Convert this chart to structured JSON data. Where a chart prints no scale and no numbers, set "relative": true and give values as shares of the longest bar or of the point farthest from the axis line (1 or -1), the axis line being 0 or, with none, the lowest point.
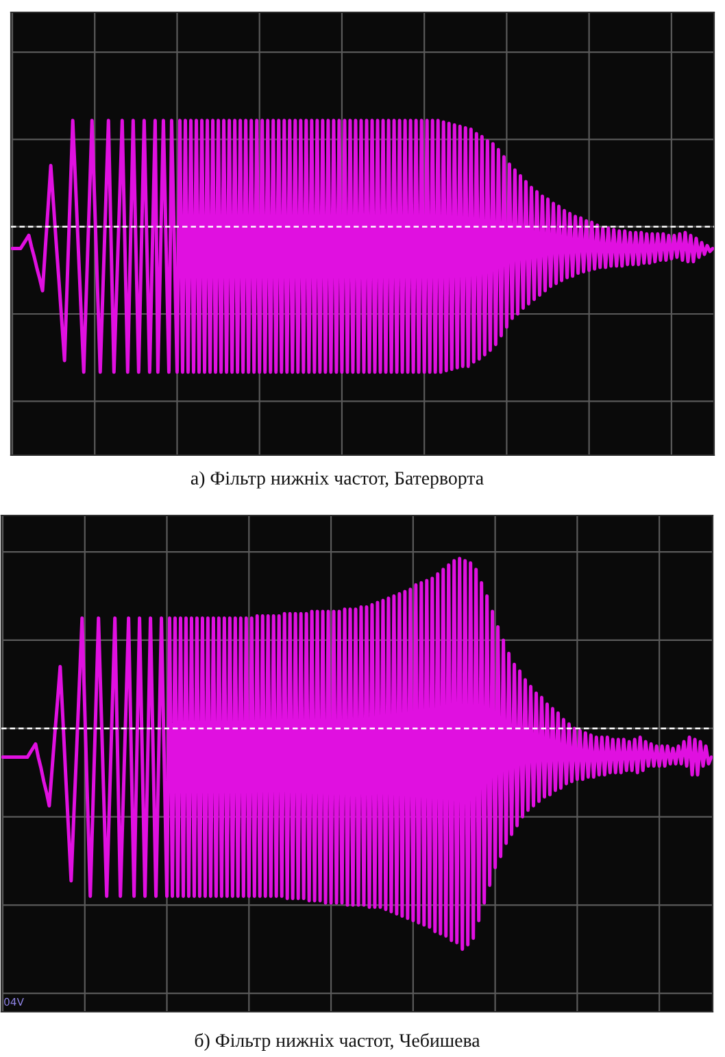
{
  "chart_data": [
    {
      "type": "line",
      "title": "а) Фільтр нижніх частот, Батерворта",
      "relative": true,
      "grid": true,
      "tick_labels": false,
      "ref_lines": [
        {
          "axis": "y",
          "value": 0,
          "color": "#ffffff",
          "line_style": "dashed"
        }
      ],
      "categories": [
        null,
        null,
        null,
        null,
        null,
        null,
        null,
        null,
        null,
        null,
        null,
        null,
        null,
        null,
        null,
        null,
        null,
        null,
        null,
        null,
        null,
        null,
        null,
        null,
        null,
        null,
        null,
        null,
        null,
        null,
        null,
        null,
        null,
        null,
        null,
        null,
        null,
        null,
        null,
        null,
        null,
        null,
        null,
        null,
        null,
        null,
        null,
        null,
        null,
        null,
        null,
        null,
        null,
        null,
        null,
        null,
        null,
        null,
        null,
        null,
        null,
        null,
        null,
        null,
        null,
        null,
        null,
        null,
        null,
        null,
        null,
        null,
        null,
        null,
        null,
        null,
        null,
        null,
        null,
        null,
        null,
        null,
        null,
        null,
        null,
        null,
        null,
        null,
        null,
        null,
        null,
        null,
        null,
        null,
        null,
        null,
        null,
        null,
        null,
        null,
        null,
        null,
        null,
        null,
        null,
        null,
        null,
        null,
        null,
        null,
        null,
        null,
        null,
        null,
        null,
        null,
        null,
        null,
        null,
        null,
        null,
        null,
        null,
        null,
        null,
        null,
        null,
        null,
        null,
        null,
        null,
        null,
        null,
        null,
        null,
        null,
        null,
        null,
        null,
        null,
        null,
        null,
        null,
        null,
        null,
        null,
        null,
        null,
        null,
        null,
        null,
        null,
        null,
        null,
        null,
        null,
        null,
        null,
        null,
        null,
        null,
        null,
        null,
        null,
        null,
        null,
        null,
        null,
        null,
        null,
        null,
        null,
        null,
        null,
        null,
        null,
        null,
        null,
        null,
        null,
        null,
        null,
        null,
        null,
        null,
        null,
        null,
        null,
        null,
        null,
        null,
        null,
        null,
        null,
        null,
        null,
        null,
        null,
        null,
        null,
        null,
        null,
        null,
        null,
        null,
        null,
        null,
        null,
        null,
        null,
        null,
        null,
        null,
        null,
        null,
        null,
        null,
        null,
        null,
        null,
        null,
        null,
        null,
        null,
        null,
        null,
        null,
        null,
        null,
        null,
        null,
        null,
        null,
        null,
        null,
        null,
        null,
        null,
        null,
        null,
        null,
        null,
        null,
        null,
        null,
        null,
        null,
        null,
        null,
        null,
        null,
        null,
        null,
        null,
        null,
        null
      ],
      "series": [
        {
          "color": "#e010e0",
          "values": [
            -0.15,
            -0.15,
            -0.15,
            -0.15,
            -0.12,
            -0.09,
            -0.06,
            -0.14,
            -0.21,
            -0.29,
            -0.36,
            -0.44,
            -0.15,
            0.13,
            0.42,
            0.15,
            -0.12,
            -0.38,
            -0.65,
            -0.92,
            -0.37,
            0.18,
            0.73,
            0.3,
            -0.14,
            -0.57,
            -1,
            -0.42,
            0.15,
            0.73,
            0.15,
            -0.42,
            -1,
            -0.42,
            0.15,
            0.73,
            -0.14,
            -1,
            -0.42,
            0.15,
            0.73,
            -0.14,
            -1,
            -0.14,
            0.73,
            -0.14,
            -1,
            -0.14,
            0.73,
            -0.14,
            -1,
            -0.14,
            0.73,
            -1,
            -0.14,
            0.73,
            -0.14,
            -1,
            0.73,
            -0.14,
            -1,
            0.73,
            -1,
            0.73,
            -1,
            0.73,
            -1,
            0.73,
            -1,
            0.73,
            -1,
            0.73,
            -1,
            0.73,
            -1,
            0.73,
            -1,
            0.73,
            -1,
            0.73,
            -1,
            0.73,
            -1,
            0.73,
            -1,
            0.73,
            -1,
            0.73,
            -1,
            0.73,
            -1,
            0.73,
            -1,
            0.73,
            -1,
            0.73,
            -1,
            0.73,
            -1,
            0.73,
            -1,
            0.73,
            -1,
            0.73,
            -1,
            0.73,
            -1,
            0.73,
            -1,
            0.73,
            -1,
            0.73,
            -1,
            0.73,
            -1,
            0.73,
            -1,
            0.73,
            -1,
            0.73,
            -1,
            0.73,
            -1,
            0.73,
            -1,
            0.73,
            -1,
            0.73,
            -1,
            0.73,
            -1,
            0.73,
            -1,
            0.73,
            -1,
            0.73,
            -1,
            0.73,
            -1,
            0.73,
            -1,
            0.73,
            -1,
            0.73,
            -1,
            0.73,
            -1,
            0.73,
            -1,
            0.73,
            -1,
            0.73,
            -1,
            0.73,
            -1,
            0.73,
            -1,
            0.72,
            -0.99,
            0.71,
            -0.98,
            0.7,
            -0.97,
            0.69,
            -0.96,
            0.68,
            -0.96,
            0.67,
            -0.93,
            0.64,
            -0.91,
            0.62,
            -0.88,
            0.59,
            -0.85,
            0.57,
            -0.81,
            0.53,
            -0.75,
            0.48,
            -0.69,
            0.43,
            -0.63,
            0.39,
            -0.6,
            0.35,
            -0.56,
            0.31,
            -0.53,
            0.27,
            -0.5,
            0.24,
            -0.47,
            0.21,
            -0.44,
            0.19,
            -0.41,
            0.16,
            -0.39,
            0.14,
            -0.37,
            0.11,
            -0.35,
            0.09,
            -0.34,
            0.07,
            -0.32,
            0.06,
            -0.31,
            0.04,
            -0.3,
            0.03,
            -0.29,
            0.01,
            -0.28,
            -0.01,
            -0.28,
            -0.01,
            -0.27,
            -0.02,
            -0.27,
            -0.03,
            -0.27,
            -0.03,
            -0.26,
            -0.04,
            -0.26,
            -0.04,
            -0.26,
            -0.04,
            -0.25,
            -0.05,
            -0.25,
            -0.05,
            -0.24,
            -0.05,
            -0.23,
            -0.05,
            -0.23,
            -0.06,
            -0.22,
            -0.06,
            -0.21,
            -0.05,
            -0.23,
            -0.04,
            -0.24,
            -0.06,
            -0.24,
            -0.08,
            -0.21,
            -0.11,
            -0.19,
            -0.13,
            -0.17,
            -0.15
          ]
        }
      ]
    },
    {
      "type": "line",
      "title": "б) Фільтр нижніх частот, Чебишева",
      "relative": true,
      "grid": true,
      "tick_labels": false,
      "ref_lines": [
        {
          "axis": "y",
          "value": 0,
          "color": "#ffffff",
          "line_style": "dashed"
        }
      ],
      "annotations": [
        "04V"
      ],
      "categories": [
        null,
        null,
        null,
        null,
        null,
        null,
        null,
        null,
        null,
        null,
        null,
        null,
        null,
        null,
        null,
        null,
        null,
        null,
        null,
        null,
        null,
        null,
        null,
        null,
        null,
        null,
        null,
        null,
        null,
        null,
        null,
        null,
        null,
        null,
        null,
        null,
        null,
        null,
        null,
        null,
        null,
        null,
        null,
        null,
        null,
        null,
        null,
        null,
        null,
        null,
        null,
        null,
        null,
        null,
        null,
        null,
        null,
        null,
        null,
        null,
        null,
        null,
        null,
        null,
        null,
        null,
        null,
        null,
        null,
        null,
        null,
        null,
        null,
        null,
        null,
        null,
        null,
        null,
        null,
        null,
        null,
        null,
        null,
        null,
        null,
        null,
        null,
        null,
        null,
        null,
        null,
        null,
        null,
        null,
        null,
        null,
        null,
        null,
        null,
        null,
        null,
        null,
        null,
        null,
        null,
        null,
        null,
        null,
        null,
        null,
        null,
        null,
        null,
        null,
        null,
        null,
        null,
        null,
        null,
        null,
        null,
        null,
        null,
        null,
        null,
        null,
        null,
        null,
        null,
        null,
        null,
        null,
        null,
        null,
        null,
        null,
        null,
        null,
        null,
        null,
        null,
        null,
        null,
        null,
        null,
        null,
        null,
        null,
        null,
        null,
        null,
        null,
        null,
        null,
        null,
        null,
        null,
        null,
        null,
        null,
        null,
        null,
        null,
        null,
        null,
        null,
        null,
        null,
        null,
        null,
        null,
        null,
        null,
        null,
        null,
        null,
        null,
        null,
        null,
        null,
        null,
        null,
        null,
        null,
        null,
        null,
        null,
        null,
        null,
        null,
        null,
        null,
        null,
        null,
        null,
        null,
        null,
        null,
        null,
        null,
        null,
        null,
        null,
        null,
        null,
        null,
        null,
        null,
        null,
        null,
        null,
        null,
        null,
        null,
        null,
        null,
        null,
        null,
        null,
        null,
        null,
        null,
        null,
        null,
        null,
        null,
        null,
        null,
        null,
        null,
        null,
        null,
        null,
        null,
        null,
        null,
        null,
        null,
        null,
        null,
        null,
        null,
        null,
        null,
        null,
        null,
        null,
        null,
        null,
        null,
        null,
        null,
        null,
        null,
        null,
        null,
        null,
        null,
        null,
        null
      ],
      "series": [
        {
          "color": "#e010e0",
          "values": [
            -0.13,
            -0.13,
            -0.13,
            -0.13,
            -0.13,
            -0.13,
            -0.13,
            -0.13,
            -0.13,
            -0.13,
            -0.11,
            -0.09,
            -0.07,
            -0.13,
            -0.18,
            -0.24,
            -0.29,
            -0.35,
            -0.19,
            -0.03,
            0.12,
            0.28,
            0.04,
            -0.21,
            -0.45,
            -0.69,
            -0.39,
            -0.1,
            0.2,
            0.5,
            0.08,
            -0.34,
            -0.76,
            -0.34,
            0.08,
            0.5,
            0.08,
            -0.34,
            -0.76,
            -0.34,
            0.08,
            0.5,
            -0.13,
            -0.76,
            -0.34,
            0.08,
            0.5,
            -0.13,
            -0.76,
            -0.13,
            0.5,
            -0.13,
            -0.76,
            -0.13,
            0.5,
            -0.13,
            -0.76,
            -0.13,
            0.5,
            -0.13,
            -0.76,
            0.5,
            -0.76,
            0.5,
            -0.76,
            0.5,
            -0.76,
            0.5,
            -0.76,
            0.5,
            -0.76,
            0.5,
            -0.76,
            0.5,
            -0.76,
            0.5,
            -0.76,
            0.5,
            -0.76,
            0.5,
            -0.76,
            0.5,
            -0.76,
            0.5,
            -0.76,
            0.5,
            -0.76,
            0.5,
            -0.76,
            0.5,
            -0.76,
            0.5,
            -0.76,
            0.51,
            -0.76,
            0.51,
            -0.76,
            0.51,
            -0.76,
            0.51,
            -0.76,
            0.51,
            -0.76,
            0.52,
            -0.77,
            0.52,
            -0.77,
            0.52,
            -0.77,
            0.52,
            -0.77,
            0.52,
            -0.78,
            0.53,
            -0.78,
            0.53,
            -0.78,
            0.53,
            -0.79,
            0.53,
            -0.79,
            0.53,
            -0.79,
            0.53,
            -0.79,
            0.54,
            -0.8,
            0.54,
            -0.8,
            0.54,
            -0.8,
            0.55,
            -0.8,
            0.55,
            -0.81,
            0.56,
            -0.81,
            0.57,
            -0.81,
            0.58,
            -0.82,
            0.59,
            -0.83,
            0.6,
            -0.84,
            0.61,
            -0.85,
            0.62,
            -0.86,
            0.63,
            -0.87,
            0.65,
            -0.88,
            0.66,
            -0.89,
            0.67,
            -0.9,
            0.68,
            -0.92,
            0.7,
            -0.93,
            0.72,
            -0.94,
            0.74,
            -0.96,
            0.76,
            -0.97,
            0.77,
            -1,
            0.76,
            -0.98,
            0.75,
            -0.95,
            0.72,
            -0.87,
            0.66,
            -0.79,
            0.6,
            -0.71,
            0.53,
            -0.63,
            0.46,
            -0.58,
            0.4,
            -0.52,
            0.34,
            -0.48,
            0.29,
            -0.44,
            0.26,
            -0.4,
            0.22,
            -0.37,
            0.19,
            -0.35,
            0.16,
            -0.33,
            0.14,
            -0.31,
            0.11,
            -0.3,
            0.09,
            -0.28,
            0.07,
            -0.27,
            0.04,
            -0.25,
            0.02,
            -0.24,
            0,
            -0.23,
            -0.01,
            -0.23,
            -0.02,
            -0.22,
            -0.03,
            -0.22,
            -0.04,
            -0.21,
            -0.04,
            -0.21,
            -0.04,
            -0.2,
            -0.05,
            -0.2,
            -0.05,
            -0.2,
            -0.05,
            -0.19,
            -0.06,
            -0.19,
            -0.05,
            -0.2,
            -0.04,
            -0.19,
            -0.06,
            -0.17,
            -0.07,
            -0.17,
            -0.08,
            -0.17,
            -0.08,
            -0.17,
            -0.08,
            -0.16,
            -0.09,
            -0.16,
            -0.08,
            -0.16,
            -0.06,
            -0.17,
            -0.04,
            -0.21,
            -0.05,
            -0.21,
            -0.06,
            -0.17,
            -0.08,
            -0.16,
            -0.13
          ]
        }
      ]
    }
  ]
}
